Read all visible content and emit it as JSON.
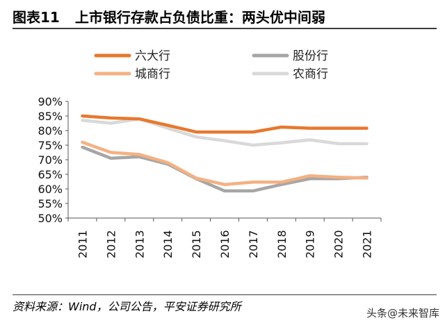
{
  "header": {
    "figure_label": "图表11",
    "title": "上市银行存款占负债比重：两头优中间弱"
  },
  "footer": {
    "source": "资料来源：Wind，公司公告，平安证券研究所",
    "watermark": "头条@未来智库"
  },
  "chart_data": {
    "type": "line",
    "title": "",
    "xlabel": "",
    "ylabel": "",
    "x": [
      "2011",
      "2012",
      "2013",
      "2014",
      "2015",
      "2016",
      "2017",
      "2018",
      "2019",
      "2020",
      "2021"
    ],
    "ylim": [
      50,
      90
    ],
    "yticks": [
      "50%",
      "55%",
      "60%",
      "65%",
      "70%",
      "75%",
      "80%",
      "85%",
      "90%"
    ],
    "grid": false,
    "legend_position": "top",
    "series": [
      {
        "name": "六大行",
        "color": "#E8782E",
        "values": [
          85.0,
          84.3,
          84.0,
          81.8,
          79.5,
          79.5,
          79.5,
          81.2,
          80.8,
          80.8,
          80.8
        ]
      },
      {
        "name": "股份行",
        "color": "#A6A6A6",
        "values": [
          74.3,
          70.5,
          71.0,
          68.5,
          63.5,
          59.3,
          59.3,
          61.5,
          63.5,
          63.5,
          64.0
        ]
      },
      {
        "name": "城商行",
        "color": "#F4B183",
        "values": [
          76.0,
          72.5,
          71.8,
          69.0,
          63.7,
          61.5,
          62.3,
          62.3,
          64.5,
          64.0,
          63.7
        ]
      },
      {
        "name": "农商行",
        "color": "#D9D9D9",
        "values": [
          83.5,
          82.5,
          84.0,
          80.8,
          77.8,
          76.5,
          75.0,
          75.8,
          76.8,
          75.5,
          75.5
        ]
      }
    ]
  }
}
